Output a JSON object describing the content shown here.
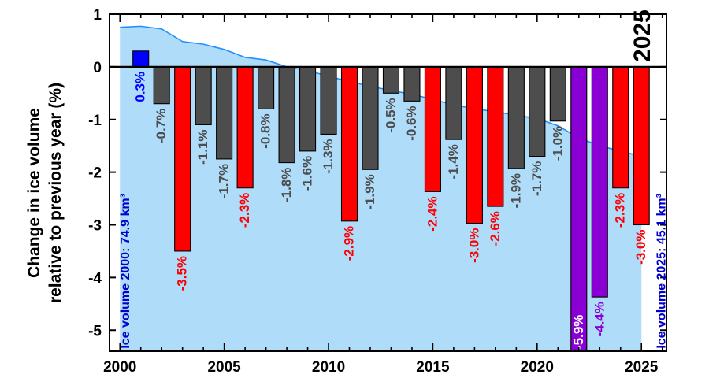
{
  "chart_data": {
    "type": "bar",
    "ylabel_line1": "Change in ice volume",
    "ylabel_line2": "relative to previous year (%)",
    "xlim": [
      1999.5,
      2026.2
    ],
    "ylim": [
      -5.4,
      1.0
    ],
    "x_ticks": [
      2000,
      2005,
      2010,
      2015,
      2020,
      2025
    ],
    "y_ticks": [
      1,
      0,
      -1,
      -2,
      -3,
      -4,
      -5
    ],
    "highlight_year_label": "2025",
    "start_volume_label": "Ice volume 2000: 74.9 km³",
    "end_volume_label": "Ice volume 2025: 45.1 km³",
    "colors": {
      "positive": "#0000ff",
      "loss": "#4d4d4d",
      "large_loss": "#ff0000",
      "extreme_loss": "#8a00d4",
      "volume_fill": "#aedcf9",
      "volume_line": "#1e90ff",
      "volume_text": "#0000cc"
    },
    "series": [
      {
        "year": 2001,
        "value": 0.3,
        "label": "0.3%",
        "category": "positive"
      },
      {
        "year": 2002,
        "value": -0.7,
        "label": "-0.7%",
        "category": "loss"
      },
      {
        "year": 2003,
        "value": -3.5,
        "label": "-3.5%",
        "category": "large_loss"
      },
      {
        "year": 2004,
        "value": -1.1,
        "label": "-1.1%",
        "category": "loss"
      },
      {
        "year": 2005,
        "value": -1.75,
        "label": "-1.7%",
        "category": "loss"
      },
      {
        "year": 2006,
        "value": -2.3,
        "label": "-2.3%",
        "category": "large_loss"
      },
      {
        "year": 2007,
        "value": -0.8,
        "label": "-0.8%",
        "category": "loss"
      },
      {
        "year": 2008,
        "value": -1.82,
        "label": "-1.8%",
        "category": "loss"
      },
      {
        "year": 2009,
        "value": -1.6,
        "label": "-1.6%",
        "category": "loss"
      },
      {
        "year": 2010,
        "value": -1.28,
        "label": "-1.3%",
        "category": "loss"
      },
      {
        "year": 2011,
        "value": -2.93,
        "label": "-2.9%",
        "category": "large_loss"
      },
      {
        "year": 2012,
        "value": -1.95,
        "label": "-1.9%",
        "category": "loss"
      },
      {
        "year": 2013,
        "value": -0.5,
        "label": "-0.5%",
        "category": "loss"
      },
      {
        "year": 2014,
        "value": -0.65,
        "label": "-0.6%",
        "category": "loss"
      },
      {
        "year": 2015,
        "value": -2.37,
        "label": "-2.4%",
        "category": "large_loss"
      },
      {
        "year": 2016,
        "value": -1.38,
        "label": "-1.4%",
        "category": "loss"
      },
      {
        "year": 2017,
        "value": -2.97,
        "label": "-3.0%",
        "category": "large_loss"
      },
      {
        "year": 2018,
        "value": -2.65,
        "label": "-2.6%",
        "category": "large_loss"
      },
      {
        "year": 2019,
        "value": -1.93,
        "label": "-1.9%",
        "category": "loss"
      },
      {
        "year": 2020,
        "value": -1.7,
        "label": "-1.7%",
        "category": "loss"
      },
      {
        "year": 2021,
        "value": -1.03,
        "label": "-1.0%",
        "category": "loss"
      },
      {
        "year": 2022,
        "value": -5.9,
        "label": "-5.9%",
        "category": "extreme_loss"
      },
      {
        "year": 2023,
        "value": -4.37,
        "label": "-4.4%",
        "category": "extreme_loss"
      },
      {
        "year": 2024,
        "value": -2.3,
        "label": "-2.3%",
        "category": "large_loss"
      },
      {
        "year": 2025,
        "value": -3.0,
        "label": "-3.0%",
        "category": "large_loss"
      }
    ],
    "volume_curve": [
      {
        "year": 2000,
        "value": 0.75
      },
      {
        "year": 2001,
        "value": 0.77
      },
      {
        "year": 2002,
        "value": 0.72
      },
      {
        "year": 2003,
        "value": 0.48
      },
      {
        "year": 2004,
        "value": 0.43
      },
      {
        "year": 2005,
        "value": 0.33
      },
      {
        "year": 2006,
        "value": 0.18
      },
      {
        "year": 2007,
        "value": 0.13
      },
      {
        "year": 2008,
        "value": 0.0
      },
      {
        "year": 2009,
        "value": -0.07
      },
      {
        "year": 2010,
        "value": -0.18
      },
      {
        "year": 2011,
        "value": -0.28
      },
      {
        "year": 2012,
        "value": -0.37
      },
      {
        "year": 2013,
        "value": -0.45
      },
      {
        "year": 2014,
        "value": -0.52
      },
      {
        "year": 2015,
        "value": -0.62
      },
      {
        "year": 2016,
        "value": -0.72
      },
      {
        "year": 2017,
        "value": -0.8
      },
      {
        "year": 2018,
        "value": -0.85
      },
      {
        "year": 2019,
        "value": -0.92
      },
      {
        "year": 2020,
        "value": -0.98
      },
      {
        "year": 2021,
        "value": -1.12
      },
      {
        "year": 2022,
        "value": -1.35
      },
      {
        "year": 2023,
        "value": -1.5
      },
      {
        "year": 2024,
        "value": -1.6
      },
      {
        "year": 2025,
        "value": -1.7
      }
    ]
  }
}
